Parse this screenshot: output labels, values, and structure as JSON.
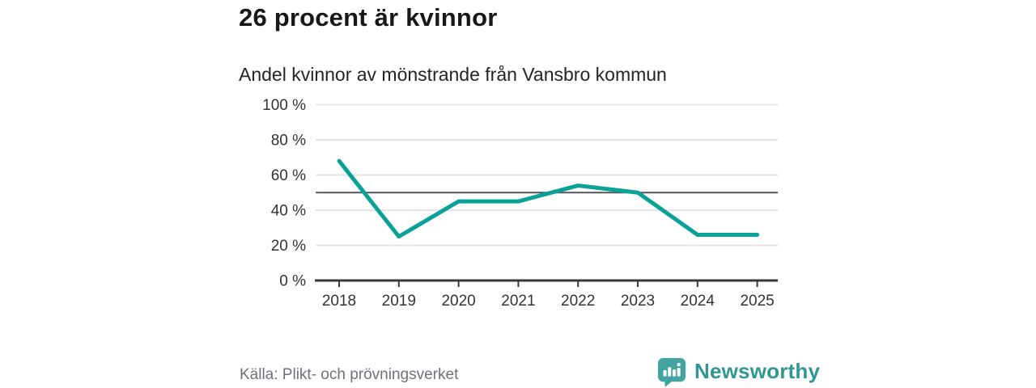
{
  "header": {
    "title": "26 procent är kvinnor",
    "subtitle": "Andel kvinnor av mönstrande från Vansbro kommun"
  },
  "chart_data": {
    "type": "line",
    "title": "26 procent är kvinnor",
    "subtitle": "Andel kvinnor av mönstrande från Vansbro kommun",
    "x": [
      "2018",
      "2019",
      "2020",
      "2021",
      "2022",
      "2023",
      "2024",
      "2025"
    ],
    "series": [
      {
        "name": "Andel kvinnor av mönstrande",
        "values": [
          68,
          25,
          45,
          45,
          54,
          50,
          26,
          26
        ]
      }
    ],
    "unit": "%",
    "xlabel": "",
    "ylabel": "",
    "ylim": [
      0,
      100
    ],
    "yticks": [
      {
        "value": 0,
        "label": "0 %"
      },
      {
        "value": 20,
        "label": "20 %"
      },
      {
        "value": 40,
        "label": "40 %"
      },
      {
        "value": 60,
        "label": "60 %"
      },
      {
        "value": 80,
        "label": "80 %"
      },
      {
        "value": 100,
        "label": "100 %"
      }
    ],
    "reference_line": 50,
    "grid": "horizontal",
    "legend": "none",
    "line_color": "#0aa296"
  },
  "footer": {
    "source": "Källa: Plikt- och prövningsverket",
    "brand": "Newsworthy"
  },
  "icons": {
    "logo": "newsworthy-speech-bubble-bar-chart-icon"
  },
  "colors": {
    "accent": "#0aa296",
    "brand_teal": "#2f9692",
    "logo_bubble": "#43a3a0",
    "grid": "#e4e4e4",
    "reference": "#55555d",
    "axis": "#39393d",
    "title_text": "#18181a",
    "muted_text": "#71717a"
  }
}
